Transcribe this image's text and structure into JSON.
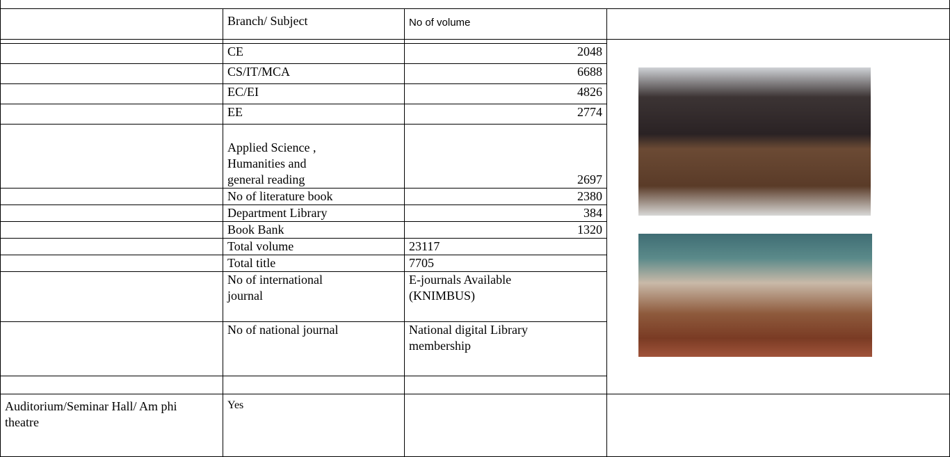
{
  "table": {
    "header": [
      "Branch/ Subject",
      "No of volume"
    ],
    "rows": [
      [
        "CE",
        2048
      ],
      [
        "CS/IT/MCA",
        6688
      ],
      [
        "EC/EI",
        4826
      ],
      [
        "EE",
        2774
      ],
      [
        "Applied Science , Humanities and general reading",
        2697
      ],
      [
        "No of literature book",
        2380
      ],
      [
        "Department Library",
        384
      ],
      [
        "Book Bank",
        1320
      ],
      [
        "Total volume",
        23117
      ],
      [
        "Total title",
        7705
      ],
      [
        "No of international journal",
        "E-journals Available (KNIMBUS)"
      ],
      [
        "No of national journal",
        "National digital Library membership"
      ]
    ],
    "auditorium": {
      "label": "Auditorium/Seminar Hall/ Am phi theatre",
      "value": "Yes"
    }
  }
}
